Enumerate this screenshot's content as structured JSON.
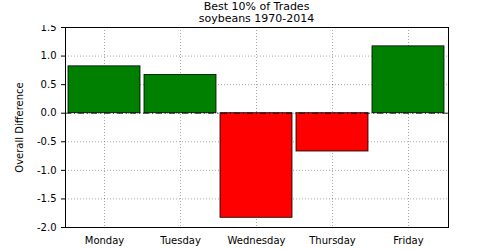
{
  "chart_data": {
    "type": "bar",
    "title": "Best 10% of Trades",
    "subtitle": "soybeans 1970-2014",
    "y_label": "Overall Difference",
    "categories": [
      "Monday",
      "Tuesday",
      "Wednesday",
      "Thursday",
      "Friday"
    ],
    "values": [
      0.82,
      0.67,
      -1.83,
      -0.67,
      1.17
    ],
    "colors": [
      "#008000",
      "#008000",
      "#ff0000",
      "#ff0000",
      "#008000"
    ],
    "ylim": [
      -2.0,
      1.5
    ],
    "yticks": [
      {
        "value": -2.0,
        "label": "-2.0"
      },
      -1.5,
      {
        "value": -1.0,
        "label": "-1.0"
      },
      -0.5,
      {
        "value": 0.0,
        "label": "0.0"
      },
      0.5,
      {
        "value": 1.0,
        "label": "1.0"
      },
      1.5
    ],
    "grid": true
  }
}
